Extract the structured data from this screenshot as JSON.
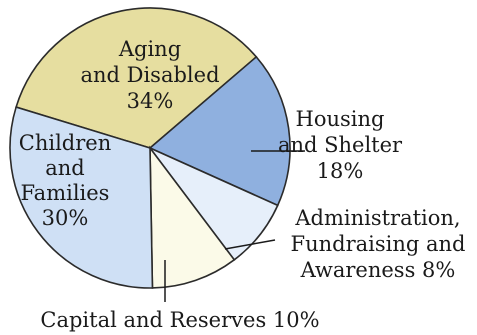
{
  "chart_data": {
    "type": "pie",
    "slices": [
      {
        "label": "Aging and Disabled",
        "lines": [
          "Aging",
          "and Disabled",
          "34%"
        ],
        "value": 34,
        "color": "#e6dea0"
      },
      {
        "label": "Housing and Shelter",
        "lines": [
          "Housing",
          "and Shelter",
          "18%"
        ],
        "value": 18,
        "color": "#8fb0df"
      },
      {
        "label": "Administration, Fundraising and Awareness",
        "lines": [
          "Administration,",
          "Fundraising and",
          "Awareness  8%"
        ],
        "value": 8,
        "color": "#e6effa"
      },
      {
        "label": "Capital and Reserves",
        "lines": [
          "Capital and Reserves  10%"
        ],
        "value": 10,
        "color": "#fbfae8"
      },
      {
        "label": "Children and Families",
        "lines": [
          "Children",
          "and",
          "Families",
          "30%"
        ],
        "value": 30,
        "color": "#cfe0f5"
      }
    ]
  }
}
